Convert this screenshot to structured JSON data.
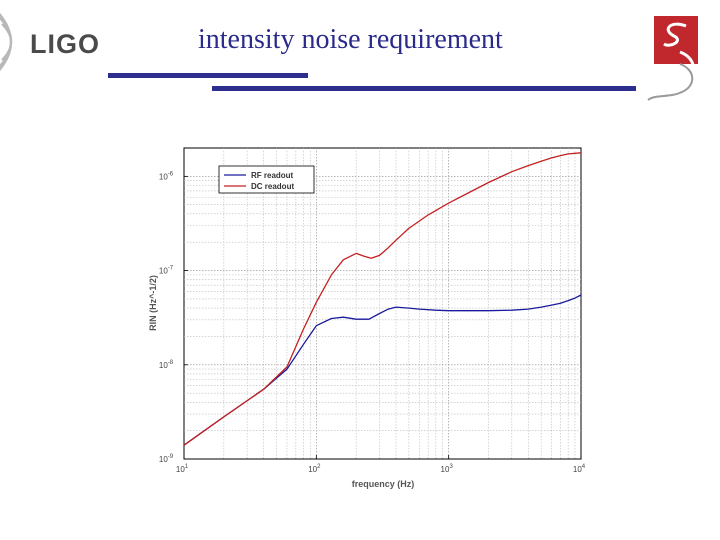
{
  "slide": {
    "title": "intensity noise requirement",
    "logo_text": "LIGO"
  },
  "colors": {
    "title": "#2a2a8a",
    "rule": "#2e2e8e",
    "emblem_red": "#c0282d"
  },
  "chart_data": {
    "type": "line",
    "title": "",
    "xlabel": "frequency (Hz)",
    "ylabel": "RIN (Hz^-1/2)",
    "xscale": "log",
    "yscale": "log",
    "xlim": [
      10,
      10000
    ],
    "ylim": [
      1e-09,
      2e-06
    ],
    "grid": true,
    "legend_position": "top-left",
    "x_ticks": [
      {
        "value": 10,
        "base": "10",
        "exp": "1"
      },
      {
        "value": 100,
        "base": "10",
        "exp": "2"
      },
      {
        "value": 1000,
        "base": "10",
        "exp": "3"
      },
      {
        "value": 10000,
        "base": "10",
        "exp": "4"
      }
    ],
    "y_ticks": [
      {
        "value": 1e-09,
        "base": "10",
        "exp": "-9"
      },
      {
        "value": 1e-08,
        "base": "10",
        "exp": "-8"
      },
      {
        "value": 1e-07,
        "base": "10",
        "exp": "-7"
      },
      {
        "value": 1e-06,
        "base": "10",
        "exp": "-6"
      }
    ],
    "series": [
      {
        "name": "RF readout",
        "color": "#1a1a9c",
        "x": [
          10,
          20,
          40,
          60,
          80,
          100,
          130,
          160,
          200,
          250,
          300,
          350,
          400,
          500,
          600,
          800,
          1000,
          2000,
          3000,
          4000,
          5000,
          6000,
          7000,
          8000,
          9000,
          10000
        ],
        "y": [
          1.4e-09,
          2.8e-09,
          5.5e-09,
          9e-09,
          1.65e-08,
          2.6e-08,
          3.1e-08,
          3.2e-08,
          3.05e-08,
          3.05e-08,
          3.5e-08,
          3.9e-08,
          4.1e-08,
          4e-08,
          3.9e-08,
          3.8e-08,
          3.75e-08,
          3.75e-08,
          3.8e-08,
          3.9e-08,
          4.1e-08,
          4.3e-08,
          4.5e-08,
          4.8e-08,
          5.1e-08,
          5.5e-08
        ]
      },
      {
        "name": "DC readout",
        "color": "#c42020",
        "x": [
          10,
          20,
          40,
          60,
          80,
          100,
          130,
          160,
          200,
          230,
          260,
          300,
          350,
          400,
          500,
          700,
          1000,
          1500,
          2000,
          3000,
          4000,
          5000,
          6000,
          7000,
          8000,
          10000
        ],
        "y": [
          1.4e-09,
          2.8e-09,
          5.5e-09,
          9.5e-09,
          2.4e-08,
          4.6e-08,
          9e-08,
          1.3e-07,
          1.52e-07,
          1.42e-07,
          1.35e-07,
          1.45e-07,
          1.75e-07,
          2.1e-07,
          2.8e-07,
          3.9e-07,
          5.2e-07,
          7e-07,
          8.6e-07,
          1.12e-06,
          1.3e-06,
          1.45e-06,
          1.57e-06,
          1.66e-06,
          1.73e-06,
          1.78e-06
        ]
      }
    ]
  }
}
